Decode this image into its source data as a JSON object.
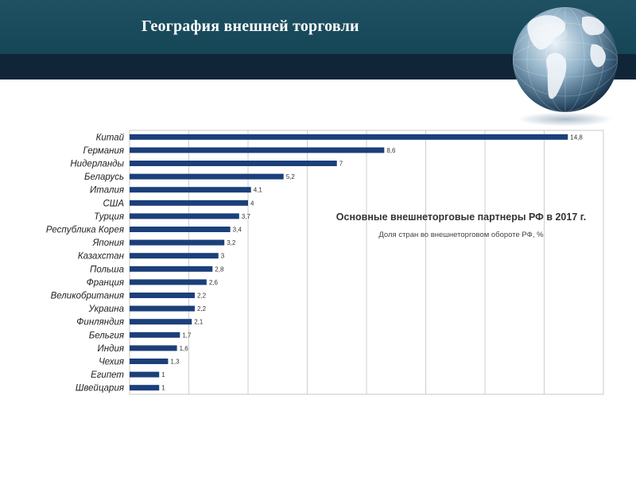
{
  "header": {
    "title": "География внешней торговли"
  },
  "colors": {
    "header_band": "#1a4b5c",
    "header_stripe": "#112538",
    "bar": "#1b3f7a",
    "title_text": "#ffffff"
  },
  "chart_data": {
    "type": "bar",
    "orientation": "horizontal",
    "title": "Основные внешнеторговые партнеры РФ в 2017 г.",
    "subtitle": "Доля стран во внешнеторговом обороте РФ, %",
    "categories": [
      "Китай",
      "Германия",
      "Нидерланды",
      "Беларусь",
      "Италия",
      "США",
      "Турция",
      "Республика Корея",
      "Япония",
      "Казахстан",
      "Польша",
      "Франция",
      "Великобритания",
      "Украина",
      "Финляндия",
      "Бельгия",
      "Индия",
      "Чехия",
      "Египет",
      "Швейцария"
    ],
    "values": [
      14.8,
      8.6,
      7,
      5.2,
      4.1,
      4,
      3.7,
      3.4,
      3.2,
      3,
      2.8,
      2.6,
      2.2,
      2.2,
      2.1,
      1.7,
      1.6,
      1.3,
      1,
      1
    ],
    "value_labels": [
      "14,8",
      "8,6",
      "7",
      "5,2",
      "4,1",
      "4",
      "3,7",
      "3,4",
      "3,2",
      "3",
      "2,8",
      "2,6",
      "2,2",
      "2,2",
      "2,1",
      "1,7",
      "1,6",
      "1,3",
      "1",
      "1"
    ],
    "xlim": [
      0,
      16
    ],
    "grid": true,
    "legend": "none"
  }
}
